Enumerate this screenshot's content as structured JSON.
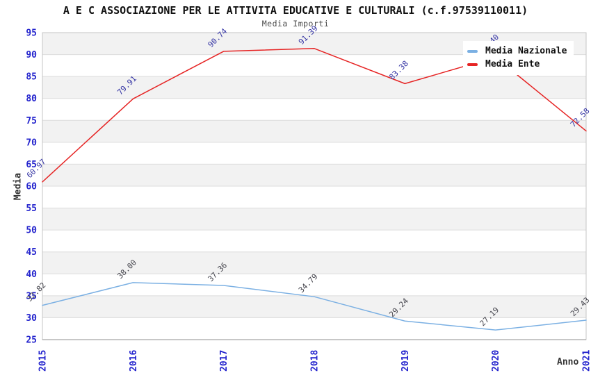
{
  "chart_data": {
    "type": "line",
    "title": "A E C ASSOCIAZIONE PER LE ATTIVITA EDUCATIVE E CULTURALI (c.f.97539110011)",
    "subtitle": "Media Importi",
    "xlabel": "Anno",
    "ylabel": "Media",
    "categories": [
      "2015",
      "2016",
      "2017",
      "2018",
      "2019",
      "2020",
      "2021"
    ],
    "series": [
      {
        "name": "Media Nazionale",
        "color": "#7bb0e3",
        "label_color": "#46464e",
        "values": [
          32.82,
          38.0,
          37.36,
          34.79,
          29.24,
          27.19,
          29.43
        ]
      },
      {
        "name": "Media Ente",
        "color": "#e62424",
        "label_color": "#3434a4",
        "values": [
          60.97,
          79.91,
          90.74,
          91.39,
          83.38,
          89.4,
          72.58
        ]
      }
    ],
    "ylim": [
      25,
      95
    ],
    "ytick_step": 5,
    "legend": {
      "position": "top-right",
      "entries": [
        "Media Nazionale",
        "Media Ente"
      ]
    },
    "grid": true,
    "style": {
      "tick_color": "#2323cd",
      "band_color": "#f2f2f2",
      "grid_color": "#dcdcdc",
      "border_color": "#c4c4c4",
      "axis_line_color": "#8f8f8f"
    }
  }
}
